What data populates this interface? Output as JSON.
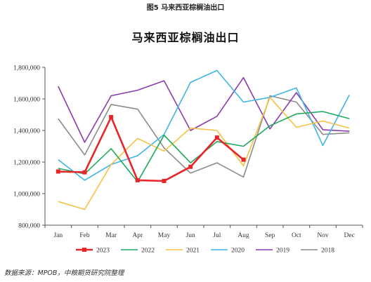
{
  "figure": {
    "caption": "图5 马来西亚棕榈油出口",
    "source": "数据来源：MPOB，中粮期货研究院整理"
  },
  "chart_data": {
    "type": "line",
    "title": "马来西亚棕榈油出口",
    "xlabel": "",
    "ylabel": "",
    "categories": [
      "Jan",
      "Feb",
      "Mar",
      "Apr",
      "May",
      "Jun",
      "Jul",
      "Aug",
      "Sep",
      "Oct",
      "Nov",
      "Dec"
    ],
    "ylim": [
      800000,
      1800000
    ],
    "yticks": [
      800000,
      1000000,
      1200000,
      1400000,
      1600000,
      1800000
    ],
    "ytick_labels": [
      "800,000",
      "1,000,000",
      "1,200,000",
      "1,400,000",
      "1,600,000",
      "1,800,000"
    ],
    "grid": false,
    "legend_position": "bottom",
    "series": [
      {
        "name": "2023",
        "color": "#e8262a",
        "markers": true,
        "values": [
          1140000,
          1135000,
          1485000,
          1085000,
          1080000,
          1170000,
          1355000,
          1215000,
          null,
          null,
          null,
          null
        ]
      },
      {
        "name": "2022",
        "color": "#1daa5b",
        "markers": false,
        "values": [
          1160000,
          1125000,
          1285000,
          1075000,
          1370000,
          1195000,
          1330000,
          1300000,
          1430000,
          1505000,
          1520000,
          1475000
        ]
      },
      {
        "name": "2021",
        "color": "#f5c242",
        "markers": false,
        "values": [
          950000,
          900000,
          1185000,
          1350000,
          1270000,
          1415000,
          1400000,
          1175000,
          1610000,
          1420000,
          1460000,
          1415000
        ]
      },
      {
        "name": "2020",
        "color": "#3fb6e8",
        "markers": false,
        "values": [
          1215000,
          1085000,
          1185000,
          1240000,
          1375000,
          1705000,
          1780000,
          1580000,
          1610000,
          1670000,
          1305000,
          1625000
        ]
      },
      {
        "name": "2019",
        "color": "#8a3bb0",
        "markers": false,
        "values": [
          1680000,
          1325000,
          1620000,
          1655000,
          1715000,
          1400000,
          1490000,
          1735000,
          1410000,
          1640000,
          1405000,
          1395000
        ]
      },
      {
        "name": "2018",
        "color": "#8c8c8c",
        "markers": false,
        "values": [
          1475000,
          1245000,
          1565000,
          1535000,
          1290000,
          1130000,
          1195000,
          1105000,
          1620000,
          1580000,
          1375000,
          1385000
        ]
      }
    ]
  }
}
